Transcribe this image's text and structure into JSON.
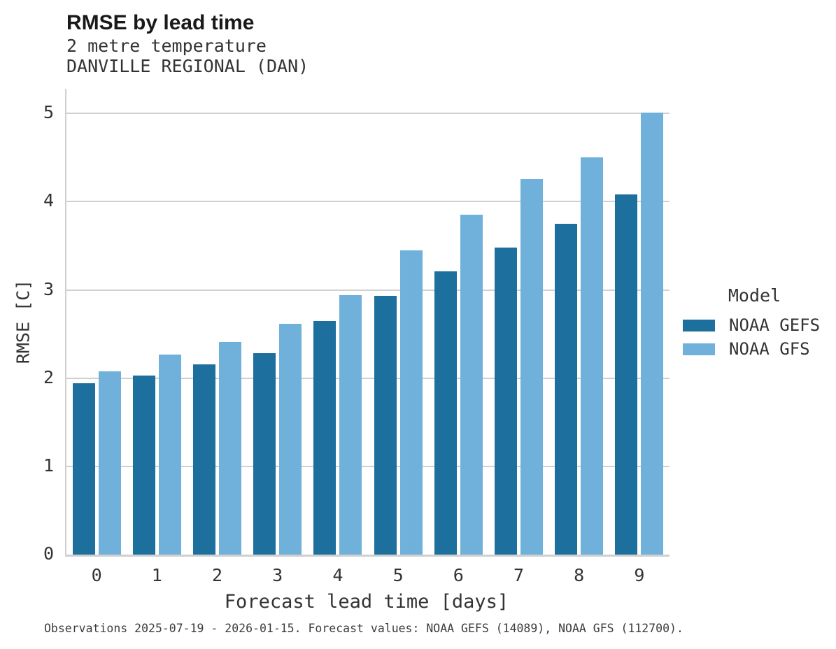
{
  "header": {
    "title": "RMSE by lead time",
    "subtitle_line1": "2 metre temperature",
    "subtitle_line2": "DANVILLE REGIONAL (DAN)"
  },
  "chart_data": {
    "type": "bar",
    "title": "RMSE by lead time",
    "subtitle": [
      "2 metre temperature",
      "DANVILLE REGIONAL (DAN)"
    ],
    "categories": [
      "0",
      "1",
      "2",
      "3",
      "4",
      "5",
      "6",
      "7",
      "8",
      "9"
    ],
    "series": [
      {
        "name": "NOAA GEFS",
        "color": "#1d6f9e",
        "values": [
          1.94,
          2.03,
          2.16,
          2.28,
          2.65,
          2.93,
          3.21,
          3.48,
          3.75,
          4.08
        ]
      },
      {
        "name": "NOAA GFS",
        "color": "#6fb1db",
        "values": [
          2.08,
          2.27,
          2.41,
          2.62,
          2.94,
          3.45,
          3.85,
          4.26,
          4.5,
          5.01
        ]
      }
    ],
    "xlabel": "Forecast lead time [days]",
    "ylabel": "RMSE [C]",
    "ylim": [
      0,
      5.28
    ],
    "yticks": [
      0,
      1,
      2,
      3,
      4,
      5
    ],
    "grid": "horizontal",
    "legend_title": "Model",
    "legend_position": "right"
  },
  "footer": {
    "note": "Observations 2025-07-19 - 2026-01-15. Forecast values: NOAA GEFS (14089), NOAA GFS (112700)."
  }
}
